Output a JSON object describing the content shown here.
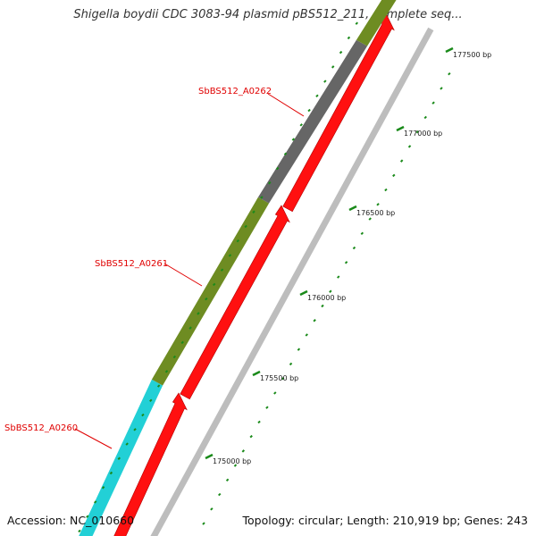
{
  "title": "Shigella boydii CDC 3083-94 plasmid pBS512_211, complete seq...",
  "footer": {
    "accession": "Accession: NC_010660",
    "topology": "Topology: circular; Length: 210,919 bp; Genes: 243"
  },
  "genes": [
    {
      "id": "SbBS512_A0260",
      "color": "#22d0d6",
      "label_color": "#e00000"
    },
    {
      "id": "SbBS512_A0261",
      "color": "#6e8c22",
      "label_color": "#e00000"
    },
    {
      "id": "SbBS512_A0262",
      "color": "#666666",
      "label_color": "#e00000"
    }
  ],
  "strand_colors": {
    "forward_track": "#ff1010",
    "ticks": "#1a8a1a"
  },
  "tick_labels": [
    "175000 bp",
    "175500 bp",
    "176000 bp",
    "176500 bp",
    "177000 bp",
    "177500 bp"
  ]
}
